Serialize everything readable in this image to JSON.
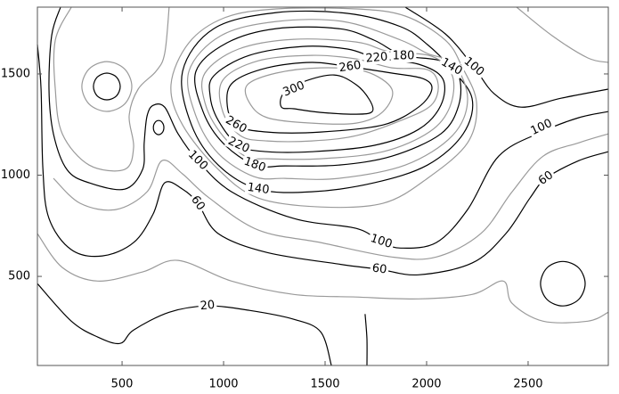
{
  "chart_data": {
    "type": "contour",
    "xlim": [
      83,
      2895
    ],
    "ylim": [
      60,
      1830
    ],
    "xticks": [
      500,
      1000,
      1500,
      2000,
      2500
    ],
    "yticks": [
      500,
      1000,
      1500
    ],
    "contours": [
      {
        "level": 20,
        "color": "#000000",
        "lines": [
          {
            "x": [
              83,
              250,
              381,
              491,
              557,
              732,
              921,
              1127,
              1346,
              1478,
              1531
            ],
            "y": [
              464,
              279,
              200,
              169,
              235,
              323,
              354,
              332,
              288,
              226,
              60
            ]
          },
          {
            "x": [
              1697,
              1706,
              1706
            ],
            "y": [
              314,
              191,
              60
            ]
          }
        ]
      },
      {
        "level": 40,
        "color": "#9a9a9a",
        "lines": [
          {
            "x": [
              83,
              206,
              381,
              601,
              776,
              1039,
              1346,
              1653,
              1960,
              2224,
              2377,
              2421,
              2574,
              2794,
              2895
            ],
            "y": [
              711,
              544,
              477,
              522,
              579,
              477,
              411,
              398,
              389,
              411,
              477,
              367,
              279,
              279,
              323
            ]
          }
        ]
      },
      {
        "level": 60,
        "color": "#000000",
        "lines": [
          {
            "x": [
              83,
              101,
              110,
              140,
              250,
              403,
              557,
              653,
              710,
              798,
              873,
              974,
              1215,
              1566,
              1767,
              1960,
              2224,
              2390,
              2509,
              2588,
              2750,
              2895
            ],
            "y": [
              1645,
              1425,
              1028,
              786,
              632,
              601,
              667,
              808,
              962,
              931,
              861,
              711,
              618,
              561,
              535,
              508,
              566,
              711,
              887,
              984,
              1072,
              1116
            ]
          },
          {
            "x": [
              2781,
              2749,
              2671,
              2593,
              2561,
              2593,
              2671,
              2749,
              2781
            ],
            "y": [
              464,
              542,
              574,
              542,
              464,
              386,
              354,
              386,
              464
            ]
          }
        ]
      },
      {
        "level": 80,
        "color": "#9a9a9a",
        "lines": [
          {
            "x": [
              162,
              294,
              469,
              623,
              697,
              798,
              930,
              1171,
              1478,
              1829,
              2048,
              2267,
              2421,
              2574,
              2750,
              2895
            ],
            "y": [
              984,
              861,
              830,
              918,
              1072,
              1006,
              887,
              729,
              667,
              596,
              596,
              711,
              918,
              1094,
              1160,
              1204
            ]
          }
        ]
      },
      {
        "level": 100,
        "color": "#000000",
        "lines": [
          {
            "x": [
              197,
              153,
              140,
              162,
              228,
              338,
              513,
              601,
              609,
              623,
              653,
              710,
              776,
              873,
              1039,
              1346,
              1653,
              1776,
              1873,
              2048,
              2202,
              2355,
              2566,
              2750,
              2895
            ],
            "y": [
              1830,
              1689,
              1425,
              1204,
              1028,
              962,
              931,
              1028,
              1160,
              1292,
              1345,
              1336,
              1204,
              1072,
              918,
              786,
              737,
              671,
              640,
              667,
              830,
              1094,
              1213,
              1284,
              1314
            ]
          },
          {
            "x": [
              1895,
              2092,
              2232,
              2333,
              2465,
              2662,
              2895
            ],
            "y": [
              1830,
              1698,
              1535,
              1402,
              1336,
              1380,
              1425
            ]
          }
        ]
      },
      {
        "level": 120,
        "color": "#9a9a9a",
        "lines": [
          {
            "x": [
              741,
              829,
              1004,
              1259,
              1653,
              1895,
              2092,
              2175,
              2246,
              2202,
              2004,
              1785,
              1478,
              1171,
              974,
              798,
              741
            ],
            "y": [
              1447,
              1654,
              1777,
              1821,
              1821,
              1786,
              1667,
              1535,
              1358,
              1160,
              984,
              861,
              843,
              887,
              1028,
              1248,
              1447
            ]
          },
          {
            "x": [
              548,
              512,
              425,
              338,
              302,
              338,
              425,
              512,
              548
            ],
            "y": [
              1438,
              1525,
              1561,
              1525,
              1438,
              1351,
              1315,
              1351,
              1438
            ]
          },
          {
            "x": [
              250,
              171,
              171,
              206,
              338,
              513,
              557,
              535,
              579,
              667,
              710,
              732
            ],
            "y": [
              1830,
              1667,
              1425,
              1204,
              1050,
              1028,
              1138,
              1292,
              1425,
              1513,
              1601,
              1830
            ]
          },
          {
            "x": [
              2443,
              2618,
              2794,
              2895
            ],
            "y": [
              1830,
              1689,
              1579,
              1557
            ]
          }
        ]
      },
      {
        "level": 140,
        "color": "#000000",
        "lines": [
          {
            "x": [
              798,
              952,
              1259,
              1610,
              1873,
              2004,
              2114,
              2224,
              2180,
              2004,
              1741,
              1434,
              1171,
              974,
              842,
              798
            ],
            "y": [
              1513,
              1724,
              1803,
              1799,
              1733,
              1645,
              1535,
              1380,
              1204,
              1050,
              962,
              918,
              931,
              1050,
              1248,
              1513
            ]
          },
          {
            "x": [
              491,
              472,
              425,
              378,
              359,
              378,
              425,
              472,
              491
            ],
            "y": [
              1438,
              1485,
              1504,
              1485,
              1438,
              1391,
              1372,
              1391,
              1438
            ]
          },
          {
            "x": [
              706,
              698,
              680,
              662,
              654,
              662,
              680,
              698,
              706
            ],
            "y": [
              1235,
              1260,
              1270,
              1260,
              1235,
              1210,
              1200,
              1210,
              1235
            ]
          }
        ]
      },
      {
        "level": 160,
        "color": "#9a9a9a",
        "lines": [
          {
            "x": [
              829,
              987,
              1259,
              1588,
              1873,
              2004,
              2136,
              2202,
              2127,
              1895,
              1566,
              1303,
              1149,
              974,
              864,
              829
            ],
            "y": [
              1513,
              1689,
              1759,
              1759,
              1667,
              1601,
              1548,
              1372,
              1195,
              1050,
              984,
              984,
              993,
              1107,
              1292,
              1513
            ]
          }
        ]
      },
      {
        "level": 180,
        "color": "#000000",
        "lines": [
          {
            "x": [
              864,
              1017,
              1259,
              1566,
              1741,
              1882,
              2070,
              2158,
              2158,
              2070,
              1829,
              1566,
              1303,
              1153,
              996,
              899,
              864
            ],
            "y": [
              1513,
              1654,
              1724,
              1724,
              1667,
              1592,
              1565,
              1491,
              1345,
              1204,
              1094,
              1050,
              1046,
              1050,
              1160,
              1314,
              1513
            ]
          }
        ]
      },
      {
        "level": 200,
        "color": "#9a9a9a",
        "lines": [
          {
            "x": [
              908,
              1074,
              1346,
              1653,
              1816,
              2026,
              2127,
              2114,
              2013,
              1785,
              1478,
              1215,
              1105,
              982,
              908,
              908
            ],
            "y": [
              1504,
              1623,
              1671,
              1658,
              1610,
              1587,
              1491,
              1336,
              1213,
              1116,
              1081,
              1081,
              1094,
              1213,
              1358,
              1504
            ]
          }
        ]
      },
      {
        "level": 220,
        "color": "#000000",
        "lines": [
          {
            "x": [
              952,
              1127,
              1390,
              1610,
              1754,
              1960,
              2079,
              2070,
              1960,
              1741,
              1434,
              1215,
              1074,
              974,
              934,
              952
            ],
            "y": [
              1491,
              1592,
              1636,
              1623,
              1579,
              1548,
              1477,
              1345,
              1226,
              1147,
              1116,
              1116,
              1147,
              1270,
              1389,
              1491
            ]
          }
        ]
      },
      {
        "level": 240,
        "color": "#9a9a9a",
        "lines": [
          {
            "x": [
              996,
              1171,
              1434,
              1653,
              1829,
              2004,
              2057,
              2022,
              1873,
              1653,
              1434,
              1215,
              1083,
              996,
              996
            ],
            "y": [
              1469,
              1565,
              1592,
              1574,
              1530,
              1521,
              1447,
              1345,
              1270,
              1195,
              1169,
              1169,
              1195,
              1314,
              1469
            ]
          }
        ]
      },
      {
        "level": 260,
        "color": "#000000",
        "lines": [
          {
            "x": [
              1048,
              1215,
              1434,
              1623,
              1829,
              1982,
              2026,
              1960,
              1785,
              1478,
              1215,
              1061,
              1017,
              1048
            ],
            "y": [
              1460,
              1530,
              1557,
              1535,
              1504,
              1477,
              1425,
              1336,
              1248,
              1213,
              1213,
              1248,
              1358,
              1460
            ]
          }
        ]
      },
      {
        "level": 280,
        "color": "#9a9a9a",
        "lines": [
          {
            "x": [
              1118,
              1259,
              1478,
              1697,
              1829,
              1785,
              1653,
              1434,
              1215,
              1127,
              1118
            ],
            "y": [
              1447,
              1504,
              1530,
              1513,
              1425,
              1314,
              1257,
              1257,
              1284,
              1358,
              1447
            ]
          }
        ]
      },
      {
        "level": 300,
        "color": "#000000",
        "lines": [
          {
            "x": [
              1285,
              1294,
              1390,
              1544,
              1653,
              1719,
              1732,
              1653,
              1478,
              1346,
              1285
            ],
            "y": [
              1336,
              1402,
              1460,
              1495,
              1447,
              1372,
              1314,
              1301,
              1310,
              1328,
              1336
            ]
          }
        ]
      }
    ]
  }
}
